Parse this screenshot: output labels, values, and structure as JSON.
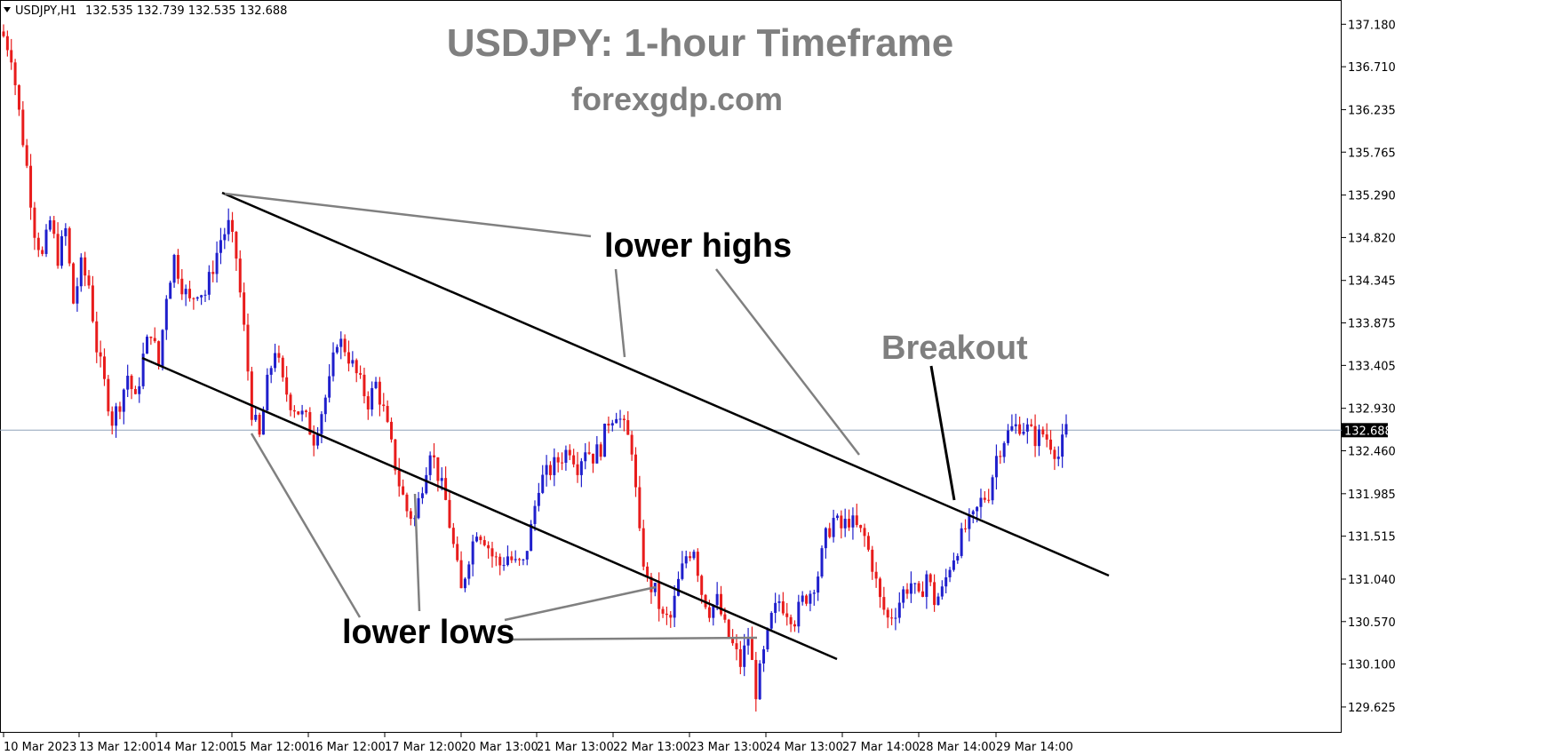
{
  "header": {
    "symbol": "USDJPY,H1",
    "ohlc": "132.535 132.739 132.535 132.688"
  },
  "title": "USDJPY: 1-hour Timeframe",
  "subtitle": "forexgdp.com",
  "annotations": {
    "lower_highs": "lower highs",
    "lower_lows": "lower lows",
    "breakout": "Breakout"
  },
  "colors": {
    "bull": "#1f1fcc",
    "bear": "#e81c1c",
    "channel": "#000000",
    "pointer": "#808080",
    "price_line": "#8fa3b8",
    "price_tag_bg": "#000000"
  },
  "chart_data": {
    "type": "candlestick",
    "title": "USDJPY: 1-hour Timeframe",
    "symbol": "USDJPY",
    "timeframe": "H1",
    "current_price": "132.688",
    "ylim": [
      129.45,
      137.35
    ],
    "y_ticks": [
      "137.180",
      "136.710",
      "136.235",
      "135.765",
      "135.290",
      "134.820",
      "134.345",
      "133.875",
      "133.405",
      "132.930",
      "132.460",
      "131.985",
      "131.515",
      "131.040",
      "130.570",
      "130.100",
      "129.625"
    ],
    "x_ticks": [
      "10 Mar 2023",
      "13 Mar 12:00",
      "14 Mar 12:00",
      "15 Mar 12:00",
      "16 Mar 12:00",
      "17 Mar 12:00",
      "20 Mar 13:00",
      "21 Mar 13:00",
      "22 Mar 13:00",
      "23 Mar 13:00",
      "24 Mar 13:00",
      "27 Mar 14:00",
      "28 Mar 14:00",
      "29 Mar 14:00"
    ],
    "price_path": [
      [
        0,
        137.05
      ],
      [
        2,
        136.85
      ],
      [
        4,
        136.2
      ],
      [
        6,
        135.6
      ],
      [
        8,
        134.9
      ],
      [
        10,
        134.6
      ],
      [
        12,
        135.0
      ],
      [
        14,
        134.6
      ],
      [
        16,
        134.9
      ],
      [
        18,
        134.1
      ],
      [
        20,
        134.5
      ],
      [
        22,
        134.3
      ],
      [
        24,
        133.6
      ],
      [
        26,
        133.2
      ],
      [
        28,
        132.8
      ],
      [
        30,
        133.0
      ],
      [
        32,
        133.3
      ],
      [
        34,
        133.0
      ],
      [
        36,
        133.5
      ],
      [
        38,
        133.8
      ],
      [
        40,
        133.4
      ],
      [
        42,
        134.2
      ],
      [
        44,
        134.6
      ],
      [
        46,
        134.3
      ],
      [
        48,
        134.1
      ],
      [
        50,
        134.25
      ],
      [
        52,
        134.2
      ],
      [
        54,
        134.5
      ],
      [
        56,
        134.8
      ],
      [
        58,
        134.95
      ],
      [
        60,
        134.6
      ],
      [
        62,
        133.8
      ],
      [
        64,
        132.9
      ],
      [
        66,
        132.6
      ],
      [
        68,
        133.2
      ],
      [
        70,
        133.6
      ],
      [
        72,
        133.2
      ],
      [
        74,
        133.0
      ],
      [
        76,
        132.9
      ],
      [
        78,
        132.8
      ],
      [
        80,
        132.6
      ],
      [
        82,
        132.9
      ],
      [
        84,
        133.2
      ],
      [
        86,
        133.7
      ],
      [
        88,
        133.6
      ],
      [
        90,
        133.4
      ],
      [
        92,
        133.2
      ],
      [
        94,
        133.0
      ],
      [
        96,
        133.2
      ],
      [
        98,
        132.9
      ],
      [
        100,
        132.5
      ],
      [
        102,
        132.1
      ],
      [
        104,
        131.8
      ],
      [
        106,
        131.7
      ],
      [
        108,
        132.1
      ],
      [
        110,
        132.5
      ],
      [
        112,
        132.2
      ],
      [
        114,
        131.9
      ],
      [
        116,
        131.4
      ],
      [
        118,
        130.9
      ],
      [
        120,
        131.3
      ],
      [
        122,
        131.6
      ],
      [
        124,
        131.5
      ],
      [
        126,
        131.3
      ],
      [
        128,
        131.2
      ],
      [
        130,
        131.3
      ],
      [
        132,
        131.2
      ],
      [
        134,
        131.2
      ],
      [
        136,
        131.6
      ],
      [
        138,
        132.1
      ],
      [
        140,
        132.2
      ],
      [
        142,
        132.3
      ],
      [
        144,
        132.4
      ],
      [
        146,
        132.5
      ],
      [
        148,
        132.3
      ],
      [
        150,
        132.5
      ],
      [
        152,
        132.4
      ],
      [
        154,
        132.5
      ],
      [
        156,
        132.8
      ],
      [
        158,
        132.9
      ],
      [
        160,
        132.7
      ],
      [
        162,
        132.5
      ],
      [
        164,
        131.5
      ],
      [
        166,
        131.0
      ],
      [
        168,
        130.9
      ],
      [
        170,
        130.6
      ],
      [
        172,
        130.6
      ],
      [
        174,
        131.0
      ],
      [
        176,
        131.3
      ],
      [
        178,
        131.4
      ],
      [
        180,
        130.9
      ],
      [
        182,
        130.7
      ],
      [
        184,
        130.8
      ],
      [
        186,
        130.5
      ],
      [
        188,
        130.3
      ],
      [
        190,
        130.1
      ],
      [
        192,
        130.4
      ],
      [
        194,
        129.8
      ],
      [
        196,
        130.2
      ],
      [
        198,
        130.6
      ],
      [
        200,
        130.8
      ],
      [
        202,
        130.7
      ],
      [
        204,
        130.6
      ],
      [
        206,
        130.8
      ],
      [
        208,
        130.9
      ],
      [
        210,
        131.1
      ],
      [
        212,
        131.5
      ],
      [
        214,
        131.7
      ],
      [
        216,
        131.6
      ],
      [
        218,
        131.7
      ],
      [
        220,
        131.6
      ],
      [
        222,
        131.5
      ],
      [
        224,
        131.2
      ],
      [
        226,
        130.8
      ],
      [
        228,
        130.6
      ],
      [
        230,
        130.7
      ],
      [
        232,
        130.9
      ],
      [
        234,
        131.0
      ],
      [
        236,
        130.8
      ],
      [
        238,
        131.1
      ],
      [
        240,
        130.8
      ],
      [
        242,
        130.9
      ],
      [
        244,
        131.2
      ],
      [
        246,
        131.4
      ],
      [
        248,
        131.6
      ],
      [
        250,
        131.7
      ],
      [
        252,
        131.9
      ],
      [
        254,
        132.0
      ],
      [
        256,
        132.4
      ],
      [
        258,
        132.6
      ],
      [
        260,
        132.7
      ],
      [
        262,
        132.75
      ],
      [
        264,
        132.7
      ],
      [
        266,
        132.6
      ],
      [
        268,
        132.65
      ],
      [
        270,
        132.55
      ],
      [
        272,
        132.4
      ],
      [
        274,
        132.688
      ]
    ],
    "channel_upper": [
      [
        134.95,
        57
      ],
      [
        130.45,
        282
      ]
    ],
    "channel_lower": [
      [
        133.05,
        36
      ],
      [
        129.2,
        214
      ]
    ],
    "lower_highs_points": [
      "134.95",
      "132.95",
      "131.75"
    ],
    "lower_lows_points": [
      "132.55",
      "131.6",
      "129.75"
    ]
  }
}
